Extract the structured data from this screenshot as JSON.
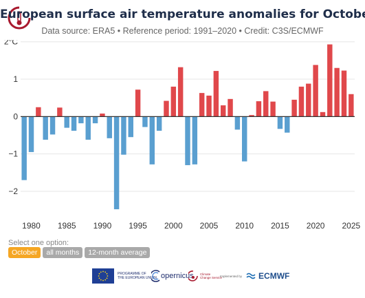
{
  "header": {
    "title": "European surface air temperature anomalies for October",
    "subtitle": "Data source: ERA5 • Reference period: 1991–2020 • Credit: C3S/ECMWF"
  },
  "chart_data": {
    "type": "bar",
    "title": "European surface air temperature anomalies for October",
    "x": [
      1979,
      1980,
      1981,
      1982,
      1983,
      1984,
      1985,
      1986,
      1987,
      1988,
      1989,
      1990,
      1991,
      1992,
      1993,
      1994,
      1995,
      1996,
      1997,
      1998,
      1999,
      2000,
      2001,
      2002,
      2003,
      2004,
      2005,
      2006,
      2007,
      2008,
      2009,
      2010,
      2011,
      2012,
      2013,
      2014,
      2015,
      2016,
      2017,
      2018,
      2019,
      2020,
      2021,
      2022,
      2023,
      2024,
      2025
    ],
    "values": [
      -1.7,
      -0.95,
      0.25,
      -0.62,
      -0.48,
      0.24,
      -0.3,
      -0.38,
      -0.18,
      -0.62,
      -0.18,
      0.08,
      -0.58,
      -2.48,
      -1.02,
      -0.55,
      0.72,
      -0.28,
      -1.28,
      -0.38,
      0.42,
      0.8,
      1.32,
      -1.3,
      -1.28,
      0.63,
      0.56,
      1.22,
      0.3,
      0.47,
      -0.35,
      -1.2,
      0.04,
      0.41,
      0.68,
      0.4,
      -0.33,
      -0.43,
      0.45,
      0.8,
      0.88,
      1.38,
      0.12,
      1.93,
      1.3,
      1.23,
      0.6
    ],
    "ylim": [
      -2.7,
      2.05
    ],
    "yticks": [
      -2,
      -1,
      0,
      1,
      2
    ],
    "ytick_labels": [
      "−2",
      "−1",
      "0",
      "1",
      "2°C"
    ],
    "xticks": [
      1980,
      1985,
      1990,
      1995,
      2000,
      2005,
      2010,
      2015,
      2020,
      2025
    ],
    "xtick_labels": [
      "1980",
      "1985",
      "1990",
      "1995",
      "2000",
      "2005",
      "2010",
      "2015",
      "2020",
      "2025"
    ],
    "colors": {
      "positive": "#e0484b",
      "negative": "#5a9fd0",
      "grid": "#e6e6e6",
      "axis": "#333333"
    },
    "grid": true,
    "legend": "none"
  },
  "controls": {
    "label": "Select one option:",
    "options": [
      {
        "label": "October",
        "active": true
      },
      {
        "label": "all months",
        "active": false
      },
      {
        "label": "12-month average",
        "active": false
      }
    ],
    "active_color": "#f5a623",
    "inactive_color": "#a9a9a9"
  },
  "footer": {
    "programme_line1": "PROGRAMME OF",
    "programme_line2": "THE EUROPEAN UNION",
    "copernicus": "opernicus",
    "climate_line1": "Climate",
    "climate_line2": "Change Service",
    "implemented": "Implemented by",
    "ecmwf": "ECMWF"
  }
}
